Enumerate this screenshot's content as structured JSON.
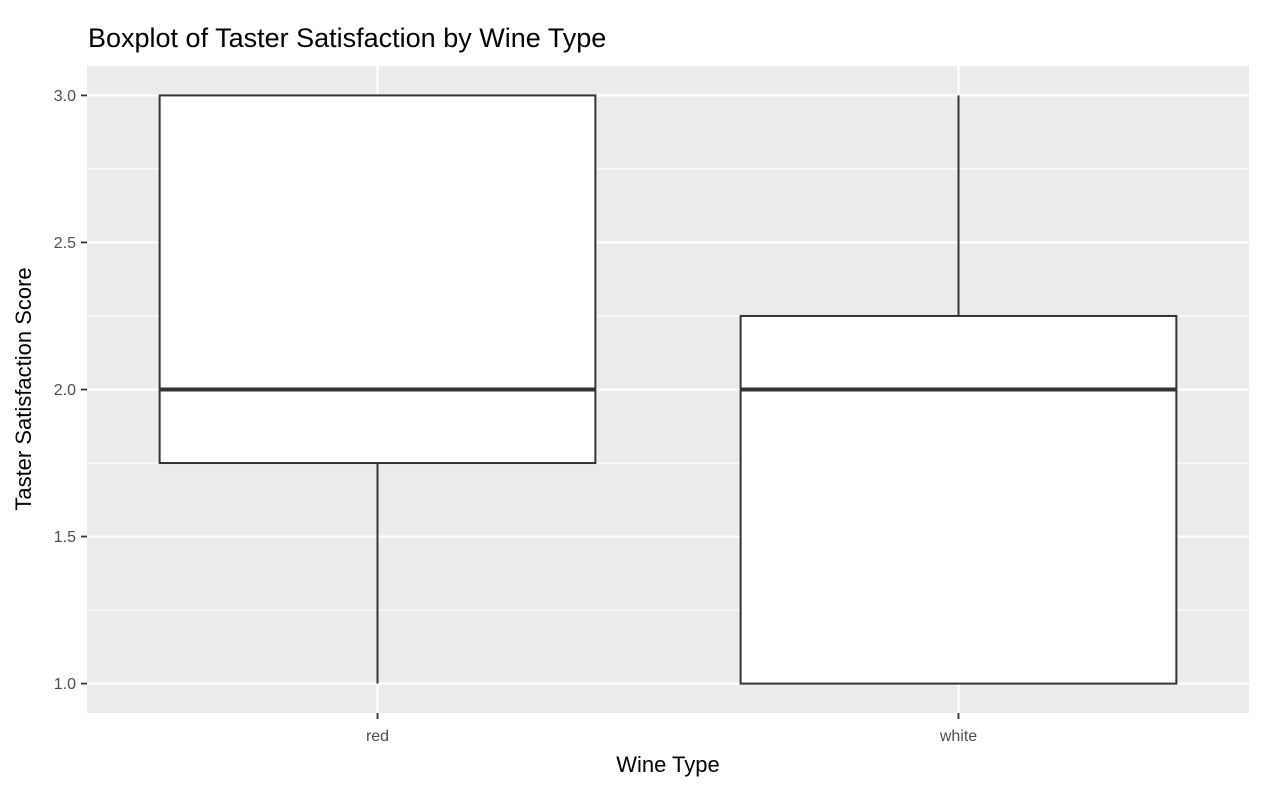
{
  "chart_data": {
    "type": "boxplot",
    "title": "Boxplot of Taster Satisfaction by Wine Type",
    "xlabel": "Wine Type",
    "ylabel": "Taster Satisfaction Score",
    "categories": [
      "red",
      "white"
    ],
    "boxes": [
      {
        "category": "red",
        "whisker_low": 1.0,
        "q1": 1.75,
        "median": 2.0,
        "q3": 3.0,
        "whisker_high": 3.0
      },
      {
        "category": "white",
        "whisker_low": 1.0,
        "q1": 1.0,
        "median": 2.0,
        "q3": 2.25,
        "whisker_high": 3.0
      }
    ],
    "y_ticks": [
      "1.0",
      "1.5",
      "2.0",
      "2.5",
      "3.0"
    ],
    "ylim": [
      0.9,
      3.1
    ],
    "grid": true,
    "colors": {
      "panel_background": "#ebebeb",
      "grid_line": "#ffffff",
      "box_fill": "#ffffff",
      "box_stroke": "#333333"
    }
  }
}
